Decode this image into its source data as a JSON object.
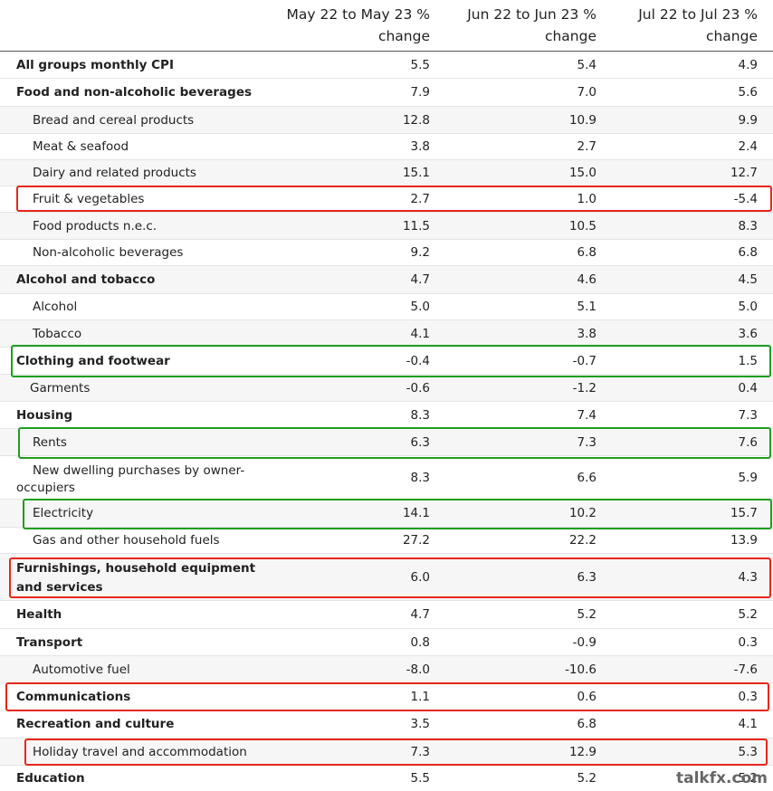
{
  "header": {
    "col1_line1": "May 22 to May 23 %",
    "col1_line2": "change",
    "col2_line1": "Jun 22 to Jun 23 %",
    "col2_line2": "change",
    "col3_line1": "Jul 22 to Jul 23 %",
    "col3_line2": "change"
  },
  "rows": [
    {
      "label": "All groups monthly CPI",
      "v": [
        "5.5",
        "5.4",
        "4.9"
      ]
    },
    {
      "label": "Food and non-alcoholic beverages",
      "v": [
        "7.9",
        "7.0",
        "5.6"
      ]
    },
    {
      "label": "Bread and cereal products",
      "v": [
        "12.8",
        "10.9",
        "9.9"
      ]
    },
    {
      "label": "Meat & seafood",
      "v": [
        "3.8",
        "2.7",
        "2.4"
      ]
    },
    {
      "label": "Dairy and related products",
      "v": [
        "15.1",
        "15.0",
        "12.7"
      ]
    },
    {
      "label": "Fruit & vegetables",
      "v": [
        "2.7",
        "1.0",
        "-5.4"
      ]
    },
    {
      "label": "Food products n.e.c.",
      "v": [
        "11.5",
        "10.5",
        "8.3"
      ]
    },
    {
      "label": "Non-alcoholic beverages",
      "v": [
        "9.2",
        "6.8",
        "6.8"
      ]
    },
    {
      "label": "Alcohol and tobacco",
      "v": [
        "4.7",
        "4.6",
        "4.5"
      ]
    },
    {
      "label": "Alcohol",
      "v": [
        "5.0",
        "5.1",
        "5.0"
      ]
    },
    {
      "label": "Tobacco",
      "v": [
        "4.1",
        "3.8",
        "3.6"
      ]
    },
    {
      "label": "Clothing and footwear",
      "v": [
        "-0.4",
        "-0.7",
        "1.5"
      ]
    },
    {
      "label": "Garments",
      "v": [
        "-0.6",
        "-1.2",
        "0.4"
      ]
    },
    {
      "label": "Housing",
      "v": [
        "8.3",
        "7.4",
        "7.3"
      ]
    },
    {
      "label": "Rents",
      "v": [
        "6.3",
        "7.3",
        "7.6"
      ]
    },
    {
      "label_line1": "New dwelling purchases by owner-",
      "label_line2": "occupiers",
      "v": [
        "8.3",
        "6.6",
        "5.9"
      ]
    },
    {
      "label": "Electricity",
      "v": [
        "14.1",
        "10.2",
        "15.7"
      ]
    },
    {
      "label": "Gas and other household fuels",
      "v": [
        "27.2",
        "22.2",
        "13.9"
      ]
    },
    {
      "label_line1": "Furnishings, household equipment",
      "label_line2": "and services",
      "v": [
        "6.0",
        "6.3",
        "4.3"
      ]
    },
    {
      "label": "Health",
      "v": [
        "4.7",
        "5.2",
        "5.2"
      ]
    },
    {
      "label": "Transport",
      "v": [
        "0.8",
        "-0.9",
        "0.3"
      ]
    },
    {
      "label": "Automotive fuel",
      "v": [
        "-8.0",
        "-10.6",
        "-7.6"
      ]
    },
    {
      "label": "Communications",
      "v": [
        "1.1",
        "0.6",
        "0.3"
      ]
    },
    {
      "label": "Recreation and culture",
      "v": [
        "3.5",
        "6.8",
        "4.1"
      ]
    },
    {
      "label": "Holiday travel and accommodation",
      "v": [
        "7.3",
        "12.9",
        "5.3"
      ]
    },
    {
      "label": "Education",
      "v": [
        "5.5",
        "5.2",
        "5.2"
      ]
    }
  ],
  "colors": {
    "highlight_red": "#e8261c",
    "highlight_green": "#1f9e1f",
    "zebra": "#f6f6f6"
  },
  "watermark": "talkfx.com"
}
